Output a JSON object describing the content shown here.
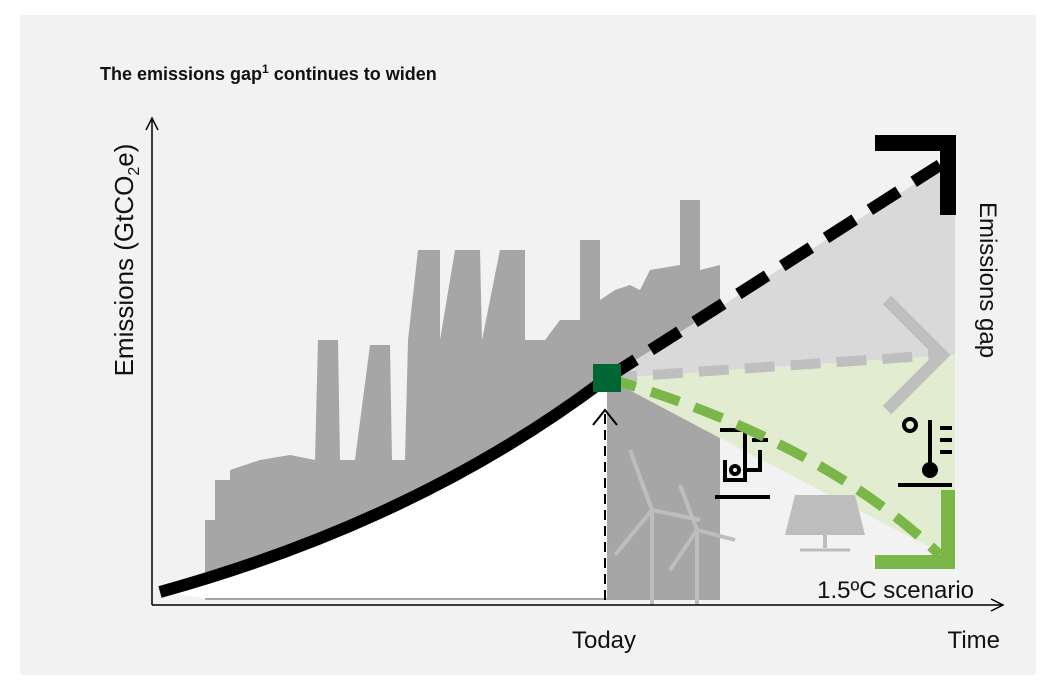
{
  "title": [
    "The emissions gap",
    "1",
    "continues to widen"
  ],
  "y_axis_label": [
    "Emissions (GtCO",
    "2",
    "e)"
  ],
  "labels": {
    "today": "Today",
    "time": "Time",
    "emissions_gap": "Emissions gap",
    "scenario": "1.5ºC scenario"
  }
}
